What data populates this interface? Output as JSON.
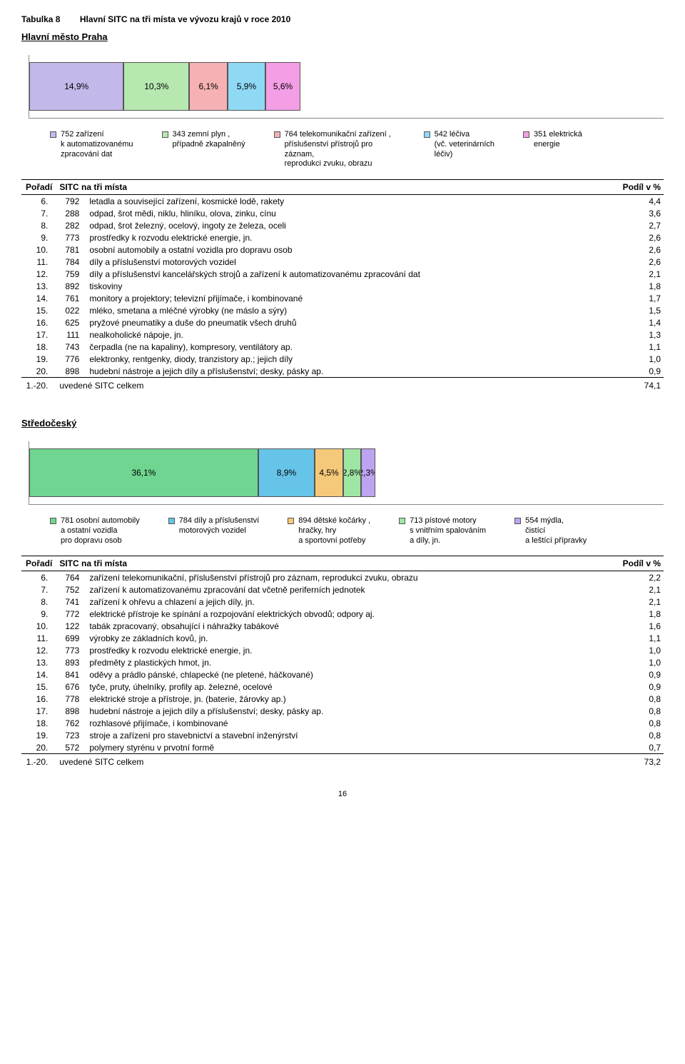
{
  "page": {
    "table_label": "Tabulka 8",
    "title": "Hlavní SITC na tři místa ve vývozu krajů v roce 2010",
    "page_number": "16"
  },
  "section1": {
    "region": "Hlavní město Praha",
    "chart": {
      "type": "stacked-bar",
      "background_color": "#ffffff",
      "border_color": "#888888",
      "segment_border": "#555555",
      "remainder_color": "#ffffff",
      "remainder_pct": 57.2,
      "segments": [
        {
          "label": "14,9%",
          "pct": 14.9,
          "color": "#c4b8ea"
        },
        {
          "label": "10,3%",
          "pct": 10.3,
          "color": "#b6e8b0"
        },
        {
          "label": "6,1%",
          "pct": 6.1,
          "color": "#f6b1b4"
        },
        {
          "label": "5,9%",
          "pct": 5.9,
          "color": "#8fd9f5"
        },
        {
          "label": "5,6%",
          "pct": 5.6,
          "color": "#f49ee6"
        }
      ]
    },
    "legend": [
      {
        "color": "#c4b8ea",
        "lines": [
          "752 zařízení",
          "k automatizovanému",
          "zpracování dat"
        ]
      },
      {
        "color": "#b6e8b0",
        "lines": [
          "343 zemní plyn ,",
          "případně zkapalněný"
        ]
      },
      {
        "color": "#f6b1b4",
        "lines": [
          "764 telekomunikační zařízení ,",
          "příslušenství přístrojů pro záznam,",
          "reprodukci zvuku, obrazu"
        ]
      },
      {
        "color": "#8fd9f5",
        "lines": [
          "542 léčiva",
          "(vč. veterinárních",
          "léčiv)"
        ]
      },
      {
        "color": "#f49ee6",
        "lines": [
          "351 elektrická",
          "energie"
        ]
      }
    ],
    "table": {
      "col_rank": "Pořadí",
      "col_sitc": "SITC na tři místa",
      "col_val": "Podíl v %",
      "rows": [
        {
          "rank": "6.",
          "code": "792",
          "desc": "letadla a související zařízení, kosmické lodě, rakety",
          "val": "4,4"
        },
        {
          "rank": "7.",
          "code": "288",
          "desc": "odpad, šrot mědi, niklu, hliníku, olova, zinku, cínu",
          "val": "3,6"
        },
        {
          "rank": "8.",
          "code": "282",
          "desc": "odpad, šrot železný, ocelový, ingoty ze železa, oceli",
          "val": "2,7"
        },
        {
          "rank": "9.",
          "code": "773",
          "desc": "prostředky k rozvodu elektrické energie, jn.",
          "val": "2,6"
        },
        {
          "rank": "10.",
          "code": "781",
          "desc": "osobní automobily a ostatní vozidla pro dopravu osob",
          "val": "2,6"
        },
        {
          "rank": "11.",
          "code": "784",
          "desc": "díly a příslušenství motorových vozidel",
          "val": "2,6"
        },
        {
          "rank": "12.",
          "code": "759",
          "desc": "díly a příslušenství kancelářských strojů a zařízení k automatizovanému zpracování dat",
          "val": "2,1"
        },
        {
          "rank": "13.",
          "code": "892",
          "desc": "tiskoviny",
          "val": "1,8"
        },
        {
          "rank": "14.",
          "code": "761",
          "desc": "monitory a projektory; televizní přijímače, i kombinované",
          "val": "1,7"
        },
        {
          "rank": "15.",
          "code": "022",
          "desc": "mléko, smetana a mléčné výrobky (ne máslo a sýry)",
          "val": "1,5"
        },
        {
          "rank": "16.",
          "code": "625",
          "desc": "pryžové pneumatiky a duše do pneumatik všech druhů",
          "val": "1,4"
        },
        {
          "rank": "17.",
          "code": "111",
          "desc": "nealkoholické nápoje, jn.",
          "val": "1,3"
        },
        {
          "rank": "18.",
          "code": "743",
          "desc": "čerpadla (ne na kapaliny), kompresory, ventilátory ap.",
          "val": "1,1"
        },
        {
          "rank": "19.",
          "code": "776",
          "desc": "elektronky, rentgenky, diody, tranzistory ap.; jejich díly",
          "val": "1,0"
        },
        {
          "rank": "20.",
          "code": "898",
          "desc": "hudební nástroje a jejich díly a příslušenství; desky, pásky ap.",
          "val": "0,9"
        }
      ],
      "total_rank": "1.-20.",
      "total_desc": "uvedené SITC celkem",
      "total_val": "74,1"
    }
  },
  "section2": {
    "region": "Středočeský",
    "chart": {
      "type": "stacked-bar",
      "background_color": "#ffffff",
      "border_color": "#888888",
      "segment_border": "#555555",
      "remainder_color": "#ffffff",
      "remainder_pct": 45.4,
      "segments": [
        {
          "label": "36,1%",
          "pct": 36.1,
          "color": "#6fd590"
        },
        {
          "label": "8,9%",
          "pct": 8.9,
          "color": "#66c4e8"
        },
        {
          "label": "4,5%",
          "pct": 4.5,
          "color": "#f5c97a"
        },
        {
          "label": "2,8%",
          "pct": 2.8,
          "color": "#9fe6a4"
        },
        {
          "label": "2,3%",
          "pct": 2.3,
          "color": "#bda4f0"
        }
      ]
    },
    "legend": [
      {
        "color": "#6fd590",
        "lines": [
          "781 osobní automobily",
          "a ostatní vozidla",
          "pro dopravu osob"
        ]
      },
      {
        "color": "#66c4e8",
        "lines": [
          "784 díly a příslušenství",
          "motorových vozidel"
        ]
      },
      {
        "color": "#f5c97a",
        "lines": [
          "894 dětské kočárky ,",
          "hračky, hry",
          "a sportovní potřeby"
        ]
      },
      {
        "color": "#9fe6a4",
        "lines": [
          "713 pístové motory",
          "s vnitřním spalováním",
          "a díly, jn."
        ]
      },
      {
        "color": "#bda4f0",
        "lines": [
          "554 mýdla,",
          "čistící",
          "a leštící přípravky"
        ]
      }
    ],
    "table": {
      "col_rank": "Pořadí",
      "col_sitc": "SITC na tři místa",
      "col_val": "Podíl v %",
      "rows": [
        {
          "rank": "6.",
          "code": "764",
          "desc": "zařízení telekomunikační, příslušenství přístrojů pro záznam, reprodukci zvuku, obrazu",
          "val": "2,2"
        },
        {
          "rank": "7.",
          "code": "752",
          "desc": "zařízení k automatizovanému zpracování dat včetně periferních jednotek",
          "val": "2,1"
        },
        {
          "rank": "8.",
          "code": "741",
          "desc": "zařízení k ohřevu a chlazení a jejich díly, jn.",
          "val": "2,1"
        },
        {
          "rank": "9.",
          "code": "772",
          "desc": "elektrické přístroje ke spínání a rozpojování elektrických obvodů; odpory aj.",
          "val": "1,8"
        },
        {
          "rank": "10.",
          "code": "122",
          "desc": "tabák zpracovaný, obsahující i náhražky tabákové",
          "val": "1,6"
        },
        {
          "rank": "11.",
          "code": "699",
          "desc": "výrobky ze základních kovů, jn.",
          "val": "1,1"
        },
        {
          "rank": "12.",
          "code": "773",
          "desc": "prostředky k rozvodu elektrické energie, jn.",
          "val": "1,0"
        },
        {
          "rank": "13.",
          "code": "893",
          "desc": "předměty z plastických hmot, jn.",
          "val": "1,0"
        },
        {
          "rank": "14.",
          "code": "841",
          "desc": "oděvy a prádlo pánské, chlapecké (ne pletené, háčkované)",
          "val": "0,9"
        },
        {
          "rank": "15.",
          "code": "676",
          "desc": "tyče, pruty, úhelníky, profily ap. železné, ocelové",
          "val": "0,9"
        },
        {
          "rank": "16.",
          "code": "778",
          "desc": "elektrické stroje a přístroje, jn. (baterie, žárovky ap.)",
          "val": "0,8"
        },
        {
          "rank": "17.",
          "code": "898",
          "desc": "hudební nástroje a jejich díly a příslušenství; desky, pásky ap.",
          "val": "0,8"
        },
        {
          "rank": "18.",
          "code": "762",
          "desc": "rozhlasové přijímače, i kombinované",
          "val": "0,8"
        },
        {
          "rank": "19.",
          "code": "723",
          "desc": "stroje a zařízení pro stavebnictví a stavební inženýrství",
          "val": "0,8"
        },
        {
          "rank": "20.",
          "code": "572",
          "desc": "polymery styrénu v prvotní formě",
          "val": "0,7"
        }
      ],
      "total_rank": "1.-20.",
      "total_desc": "uvedené SITC celkem",
      "total_val": "73,2"
    }
  }
}
